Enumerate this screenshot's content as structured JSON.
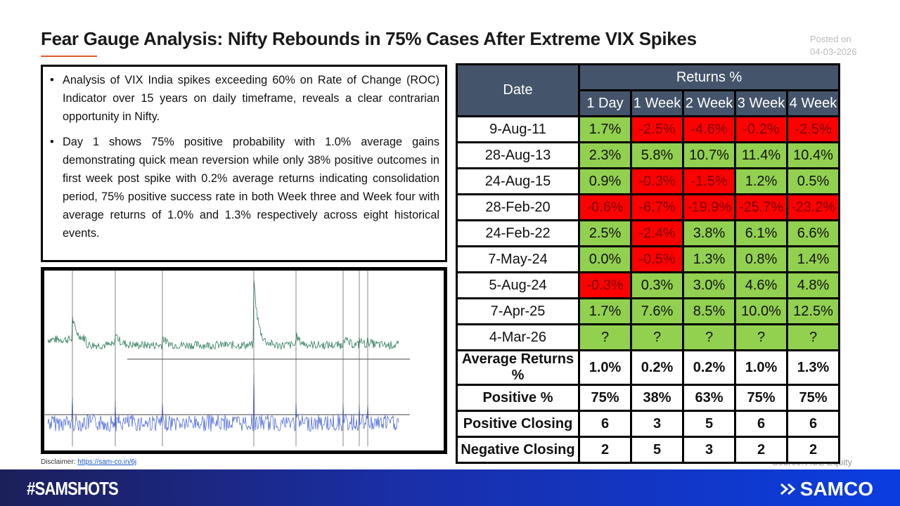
{
  "title": "Fear Gauge Analysis: Nifty Rebounds in 75% Cases After Extreme VIX Spikes",
  "posted": {
    "label": "Posted on",
    "date": "04-03-2026"
  },
  "bullets": [
    "Analysis of VIX India spikes exceeding 60% on Rate of Change (ROC) Indicator over 15 years on daily timeframe, reveals a clear contrarian opportunity in Nifty.",
    "Day 1 shows 75% positive probability with 1.0% average gains demonstrating quick mean reversion while only 38% positive outcomes in first week post spike with 0.2% average returns indicating consolidation period, 75% positive success rate in both Week three and Week four with average returns of 1.0% and 1.3% respectively across eight historical events."
  ],
  "disclaimer": {
    "label": "Disclaimer:",
    "link": "https://sam-co.in/6j"
  },
  "source": "Source: ACE Equity",
  "table": {
    "date_header": "Date",
    "returns_header": "Returns %",
    "columns": [
      "1 Day",
      "1 Week",
      "2 Week",
      "3 Week",
      "4 Week"
    ],
    "rows": [
      {
        "date": "9-Aug-11",
        "values": [
          "1.7%",
          "-2.5%",
          "-4.6%",
          "-0.2%",
          "-2.5%"
        ]
      },
      {
        "date": "28-Aug-13",
        "values": [
          "2.3%",
          "5.8%",
          "10.7%",
          "11.4%",
          "10.4%"
        ]
      },
      {
        "date": "24-Aug-15",
        "values": [
          "0.9%",
          "-0.3%",
          "-1.5%",
          "1.2%",
          "0.5%"
        ]
      },
      {
        "date": "28-Feb-20",
        "values": [
          "-0.6%",
          "-6.7%",
          "-19.9%",
          "-25.7%",
          "-23.2%"
        ]
      },
      {
        "date": "24-Feb-22",
        "values": [
          "2.5%",
          "-2.4%",
          "3.8%",
          "6.1%",
          "6.6%"
        ]
      },
      {
        "date": "7-May-24",
        "values": [
          "0.0%",
          "-0.5%",
          "1.3%",
          "0.8%",
          "1.4%"
        ]
      },
      {
        "date": "5-Aug-24",
        "values": [
          "-0.3%",
          "0.3%",
          "3.0%",
          "4.6%",
          "4.8%"
        ]
      },
      {
        "date": "7-Apr-25",
        "values": [
          "1.7%",
          "7.6%",
          "8.5%",
          "10.0%",
          "12.5%"
        ]
      },
      {
        "date": "4-Mar-26",
        "values": [
          "?",
          "?",
          "?",
          "?",
          "?"
        ]
      }
    ],
    "summary": [
      {
        "label": "Average Returns %",
        "values": [
          "1.0%",
          "0.2%",
          "0.2%",
          "1.0%",
          "1.3%"
        ]
      },
      {
        "label": "Positive %",
        "values": [
          "75%",
          "38%",
          "63%",
          "75%",
          "75%"
        ]
      },
      {
        "label": "Positive Closing",
        "values": [
          "6",
          "3",
          "5",
          "6",
          "6"
        ]
      },
      {
        "label": "Negative Closing",
        "values": [
          "2",
          "5",
          "3",
          "2",
          "2"
        ]
      }
    ]
  },
  "colors": {
    "header": "#44546a",
    "positive": "#92d050",
    "negative": "#ff0000",
    "accent": "#e05a2b"
  },
  "footer": {
    "hashtag": "#SAMSHOTS",
    "brand": "SAMCO"
  }
}
